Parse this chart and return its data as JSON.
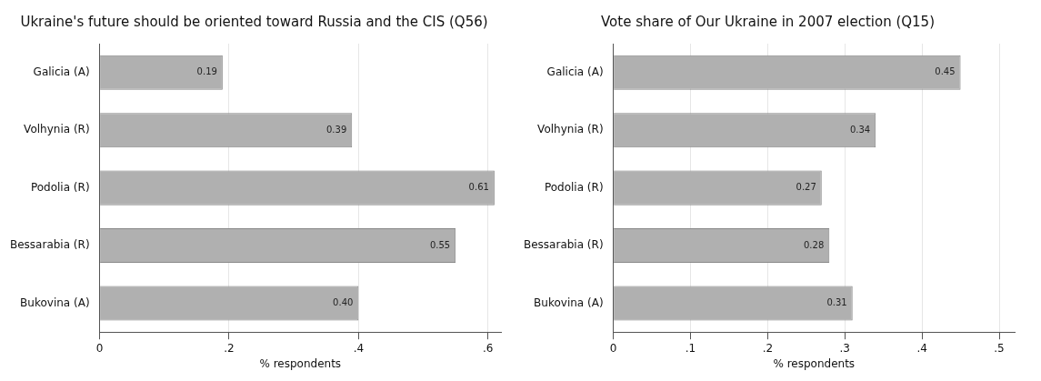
{
  "chart_data": [
    {
      "type": "bar",
      "orientation": "horizontal",
      "title": "Ukraine's future should be oriented toward Russia and the CIS (Q56)",
      "xlabel": "% respondents",
      "categories": [
        "Galicia (A)",
        "Volhynia (R)",
        "Podolia (R)",
        "Bessarabia (R)",
        "Bukovina (A)"
      ],
      "values": [
        0.19,
        0.39,
        0.61,
        0.55,
        0.4
      ],
      "value_labels": [
        "0.19",
        "0.39",
        "0.61",
        "0.55",
        "0.40"
      ],
      "color": "#b0b0b0",
      "xlim": [
        0,
        0.62
      ],
      "xticks": [
        {
          "value": 0,
          "label": "0"
        },
        {
          "value": 0.2,
          "label": ".2"
        },
        {
          "value": 0.4,
          "label": ".4"
        },
        {
          "value": 0.6,
          "label": ".6"
        }
      ],
      "grid": "x"
    },
    {
      "type": "bar",
      "orientation": "horizontal",
      "title": "Vote share of Our Ukraine in 2007 election (Q15)",
      "xlabel": "% respondents",
      "categories": [
        "Galicia (A)",
        "Volhynia (R)",
        "Podolia (R)",
        "Bessarabia (R)",
        "Bukovina (A)"
      ],
      "values": [
        0.45,
        0.34,
        0.27,
        0.28,
        0.31
      ],
      "value_labels": [
        "0.45",
        "0.34",
        "0.27",
        "0.28",
        "0.31"
      ],
      "color": "#b0b0b0",
      "xlim": [
        0,
        0.52
      ],
      "xticks": [
        {
          "value": 0,
          "label": "0"
        },
        {
          "value": 0.1,
          "label": ".1"
        },
        {
          "value": 0.2,
          "label": ".2"
        },
        {
          "value": 0.3,
          "label": ".3"
        },
        {
          "value": 0.4,
          "label": ".4"
        },
        {
          "value": 0.5,
          "label": ".5"
        }
      ],
      "grid": "x"
    }
  ]
}
